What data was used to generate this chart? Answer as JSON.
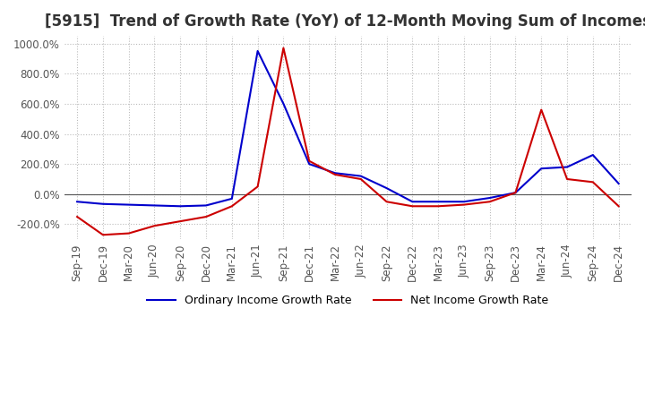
{
  "title": "[5915]  Trend of Growth Rate (YoY) of 12-Month Moving Sum of Incomes",
  "title_fontsize": 12,
  "ylim": [
    -300,
    1050
  ],
  "yticks": [
    -200,
    0,
    200,
    400,
    600,
    800,
    1000
  ],
  "background_color": "#ffffff",
  "grid_color": "#bbbbbb",
  "legend_labels": [
    "Ordinary Income Growth Rate",
    "Net Income Growth Rate"
  ],
  "line_colors": [
    "#0000cc",
    "#cc0000"
  ],
  "x_labels": [
    "Sep-19",
    "Dec-19",
    "Mar-20",
    "Jun-20",
    "Sep-20",
    "Dec-20",
    "Mar-21",
    "Jun-21",
    "Sep-21",
    "Dec-21",
    "Mar-22",
    "Jun-22",
    "Sep-22",
    "Dec-22",
    "Mar-23",
    "Jun-23",
    "Sep-23",
    "Dec-23",
    "Mar-24",
    "Jun-24",
    "Sep-24",
    "Dec-24"
  ],
  "ordinary_income": [
    -50,
    -65,
    -70,
    -75,
    -80,
    -75,
    -30,
    950,
    600,
    200,
    140,
    120,
    40,
    -50,
    -50,
    -50,
    -25,
    10,
    170,
    180,
    260,
    70
  ],
  "net_income": [
    -150,
    -270,
    -260,
    -210,
    -180,
    -150,
    -80,
    50,
    970,
    220,
    130,
    100,
    -50,
    -80,
    -80,
    -70,
    -50,
    10,
    560,
    100,
    80,
    -80
  ]
}
